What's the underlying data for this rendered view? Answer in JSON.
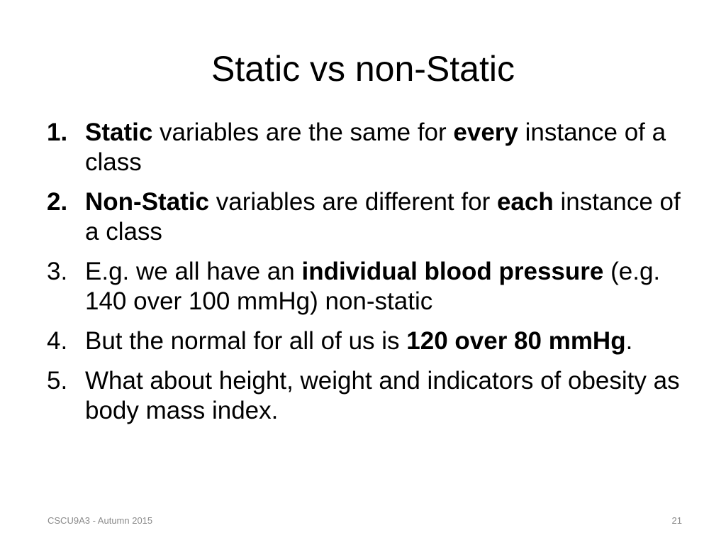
{
  "slide": {
    "title": "Static vs non-Static",
    "items": [
      {
        "number": "1.",
        "number_bold": true,
        "seg0": "Static",
        "seg1": " variables are the same for ",
        "seg2": "every",
        "seg3": " instance of a class"
      },
      {
        "number": "2.",
        "number_bold": true,
        "seg0": "Non-Static",
        "seg1": " variables are different for ",
        "seg2": "each",
        "seg3": " instance of a class"
      },
      {
        "number": "3.",
        "seg0": "E.g. we all have an ",
        "seg1": "individual blood pressure",
        "seg2": " (e.g. 140 over 100 mmHg) non-static"
      },
      {
        "number": "4.",
        "seg0": "But the normal for all of us is ",
        "seg1": "120 over 80 mmHg",
        "seg2": "."
      },
      {
        "number": "5.",
        "seg0": "What about height, weight and indicators of obesity as body mass index."
      }
    ],
    "footer_left": "CSCU9A3 - Autumn 2015",
    "page_number": "21"
  }
}
